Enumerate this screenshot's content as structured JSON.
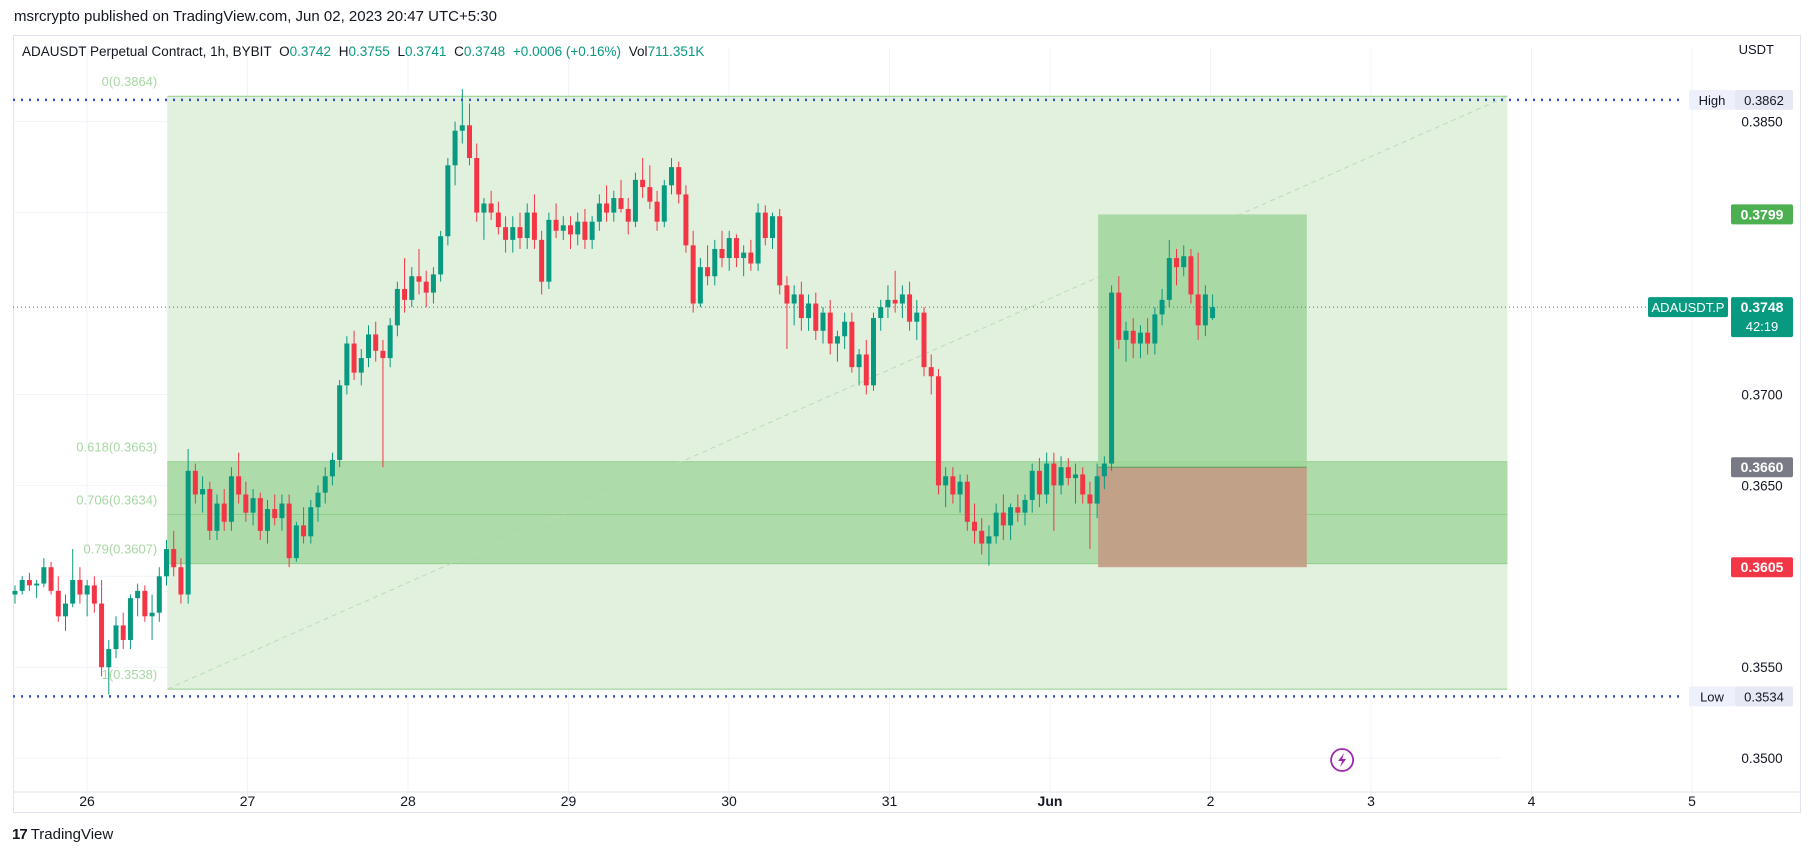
{
  "caption": "msrcrypto published on TradingView.com, Jun 02, 2023 20:47 UTC+5:30",
  "legend": {
    "symbol": "ADAUSDT Perpetual Contract, 1h, BYBIT",
    "o_label": "O",
    "o_value": "0.3742",
    "h_label": "H",
    "h_value": "0.3755",
    "l_label": "L",
    "l_value": "0.3741",
    "c_label": "C",
    "c_value": "0.3748",
    "change": "+0.0006 (+0.16%)",
    "vol_label": "Vol",
    "vol_value": "711.351K"
  },
  "currency": "USDT",
  "footer": {
    "logo": "17",
    "brand": "TradingView"
  },
  "colors": {
    "up": "#089981",
    "down": "#f23645",
    "fib_zone": "#dff0dc",
    "golden_zone": "#a7d8a4",
    "target": "#9fd69b",
    "stop": "#c49a85",
    "hl_line": "#2f4de0"
  },
  "chart_data": {
    "type": "candlestick",
    "title": "ADAUSDT Perpetual Contract, 1h, BYBIT",
    "ylim": [
      0.3488,
      0.3885
    ],
    "y_ticks": [
      0.385,
      0.37,
      0.365,
      0.355,
      0.35
    ],
    "y_tick_labels": [
      "0.3850",
      "0.3700",
      "0.3650",
      "0.3550",
      "0.3500"
    ],
    "x_ticks": [
      {
        "label": "26",
        "day": 26
      },
      {
        "label": "27",
        "day": 27
      },
      {
        "label": "28",
        "day": 28
      },
      {
        "label": "29",
        "day": 29
      },
      {
        "label": "30",
        "day": 30
      },
      {
        "label": "31",
        "day": 31
      },
      {
        "label": "Jun",
        "day": 32
      },
      {
        "label": "2",
        "day": 33
      },
      {
        "label": "3",
        "day": 34
      },
      {
        "label": "4",
        "day": 35
      },
      {
        "label": "5",
        "day": 36
      }
    ],
    "fib_levels": [
      {
        "label": "0(0.3864)",
        "value": 0.3864
      },
      {
        "label": "0.618(0.3663)",
        "value": 0.3663
      },
      {
        "label": "0.706(0.3634)",
        "value": 0.3634
      },
      {
        "label": "0.79(0.3607)",
        "value": 0.3607
      },
      {
        "label": "1(0.3538)",
        "value": 0.3538
      }
    ],
    "fib_range": {
      "start_day": 26.5,
      "end_day": 34.85
    },
    "high": {
      "label": "High",
      "value": 0.3862,
      "display": "0.3862"
    },
    "low": {
      "label": "Low",
      "value": 0.3534,
      "display": "0.3534"
    },
    "position": {
      "start_day": 32.3,
      "end_day": 33.6,
      "entry": 0.366,
      "target": 0.3799,
      "stop": 0.3605,
      "entry_label": "0.3660",
      "target_label": "0.3799",
      "stop_label": "0.3605"
    },
    "last_price": {
      "symbol_label": "ADAUSDT.P",
      "value": 0.3748,
      "display": "0.3748",
      "countdown": "42:19"
    },
    "candles": [
      [
        0.359,
        0.3595,
        0.3585,
        0.3592
      ],
      [
        0.3592,
        0.36,
        0.359,
        0.3598
      ],
      [
        0.3598,
        0.3602,
        0.3592,
        0.3595
      ],
      [
        0.3595,
        0.3598,
        0.3588,
        0.3596
      ],
      [
        0.3596,
        0.361,
        0.3594,
        0.3605
      ],
      [
        0.3605,
        0.3608,
        0.359,
        0.3592
      ],
      [
        0.3592,
        0.36,
        0.3575,
        0.3578
      ],
      [
        0.3578,
        0.359,
        0.357,
        0.3585
      ],
      [
        0.3585,
        0.3615,
        0.3583,
        0.3598
      ],
      [
        0.3598,
        0.3605,
        0.3585,
        0.359
      ],
      [
        0.359,
        0.3598,
        0.3578,
        0.3595
      ],
      [
        0.3595,
        0.36,
        0.358,
        0.3585
      ],
      [
        0.3585,
        0.3598,
        0.3545,
        0.355
      ],
      [
        0.355,
        0.3565,
        0.3535,
        0.356
      ],
      [
        0.356,
        0.3578,
        0.3555,
        0.3573
      ],
      [
        0.3573,
        0.358,
        0.356,
        0.3565
      ],
      [
        0.3565,
        0.359,
        0.356,
        0.3588
      ],
      [
        0.3588,
        0.3596,
        0.3578,
        0.3592
      ],
      [
        0.3592,
        0.3595,
        0.3575,
        0.3578
      ],
      [
        0.3578,
        0.359,
        0.3565,
        0.358
      ],
      [
        0.358,
        0.3605,
        0.3575,
        0.36
      ],
      [
        0.36,
        0.362,
        0.3595,
        0.3615
      ],
      [
        0.3615,
        0.3625,
        0.36,
        0.3605
      ],
      [
        0.3605,
        0.361,
        0.3585,
        0.359
      ],
      [
        0.359,
        0.367,
        0.3585,
        0.3658
      ],
      [
        0.3658,
        0.3662,
        0.364,
        0.3645
      ],
      [
        0.3645,
        0.3655,
        0.3635,
        0.3648
      ],
      [
        0.3648,
        0.3652,
        0.362,
        0.3625
      ],
      [
        0.3625,
        0.3645,
        0.362,
        0.364
      ],
      [
        0.364,
        0.3648,
        0.3625,
        0.363
      ],
      [
        0.363,
        0.366,
        0.3625,
        0.3655
      ],
      [
        0.3655,
        0.3668,
        0.364,
        0.3645
      ],
      [
        0.3645,
        0.3652,
        0.363,
        0.3635
      ],
      [
        0.3635,
        0.3648,
        0.3628,
        0.3643
      ],
      [
        0.3643,
        0.3646,
        0.362,
        0.3625
      ],
      [
        0.3625,
        0.3642,
        0.3618,
        0.3637
      ],
      [
        0.3637,
        0.3645,
        0.3628,
        0.3632
      ],
      [
        0.3632,
        0.3645,
        0.3625,
        0.364
      ],
      [
        0.364,
        0.3645,
        0.3605,
        0.361
      ],
      [
        0.361,
        0.363,
        0.3608,
        0.3628
      ],
      [
        0.3628,
        0.3638,
        0.3618,
        0.3622
      ],
      [
        0.3622,
        0.3642,
        0.3618,
        0.3638
      ],
      [
        0.3638,
        0.365,
        0.363,
        0.3646
      ],
      [
        0.3646,
        0.366,
        0.364,
        0.3655
      ],
      [
        0.3655,
        0.3668,
        0.365,
        0.3664
      ],
      [
        0.3664,
        0.3708,
        0.366,
        0.3705
      ],
      [
        0.3705,
        0.3732,
        0.37,
        0.3728
      ],
      [
        0.3728,
        0.3735,
        0.3708,
        0.3712
      ],
      [
        0.3712,
        0.3725,
        0.3705,
        0.372
      ],
      [
        0.372,
        0.3738,
        0.3715,
        0.3733
      ],
      [
        0.3733,
        0.374,
        0.3718,
        0.3724
      ],
      [
        0.3724,
        0.373,
        0.366,
        0.372
      ],
      [
        0.372,
        0.3742,
        0.3715,
        0.3738
      ],
      [
        0.3738,
        0.3762,
        0.3732,
        0.3758
      ],
      [
        0.3758,
        0.3775,
        0.3745,
        0.3752
      ],
      [
        0.3752,
        0.377,
        0.3748,
        0.3765
      ],
      [
        0.3765,
        0.378,
        0.3755,
        0.3762
      ],
      [
        0.3762,
        0.3768,
        0.3748,
        0.3756
      ],
      [
        0.3756,
        0.377,
        0.375,
        0.3766
      ],
      [
        0.3766,
        0.379,
        0.3762,
        0.3787
      ],
      [
        0.3787,
        0.383,
        0.3782,
        0.3826
      ],
      [
        0.3826,
        0.385,
        0.3815,
        0.3845
      ],
      [
        0.3845,
        0.3868,
        0.3838,
        0.3848
      ],
      [
        0.3848,
        0.386,
        0.3826,
        0.383
      ],
      [
        0.383,
        0.3838,
        0.3795,
        0.38
      ],
      [
        0.38,
        0.3808,
        0.3785,
        0.3805
      ],
      [
        0.3805,
        0.3812,
        0.3796,
        0.38
      ],
      [
        0.38,
        0.3806,
        0.3788,
        0.3792
      ],
      [
        0.3792,
        0.3798,
        0.3778,
        0.3785
      ],
      [
        0.3785,
        0.3798,
        0.3778,
        0.3792
      ],
      [
        0.3792,
        0.38,
        0.378,
        0.3786
      ],
      [
        0.3786,
        0.3805,
        0.378,
        0.38
      ],
      [
        0.38,
        0.381,
        0.378,
        0.3785
      ],
      [
        0.3785,
        0.379,
        0.3755,
        0.3762
      ],
      [
        0.3762,
        0.38,
        0.3758,
        0.3796
      ],
      [
        0.3796,
        0.3805,
        0.3786,
        0.379
      ],
      [
        0.379,
        0.3798,
        0.3785,
        0.3793
      ],
      [
        0.3793,
        0.3798,
        0.378,
        0.3788
      ],
      [
        0.3788,
        0.38,
        0.3782,
        0.3795
      ],
      [
        0.3795,
        0.3802,
        0.378,
        0.3785
      ],
      [
        0.3785,
        0.3798,
        0.378,
        0.3795
      ],
      [
        0.3795,
        0.381,
        0.379,
        0.3805
      ],
      [
        0.3805,
        0.3815,
        0.3795,
        0.38
      ],
      [
        0.38,
        0.3812,
        0.3795,
        0.3808
      ],
      [
        0.3808,
        0.3818,
        0.38,
        0.3802
      ],
      [
        0.3802,
        0.3808,
        0.3788,
        0.3795
      ],
      [
        0.3795,
        0.3822,
        0.3792,
        0.3818
      ],
      [
        0.3818,
        0.383,
        0.3808,
        0.3814
      ],
      [
        0.3814,
        0.3826,
        0.3802,
        0.3806
      ],
      [
        0.3806,
        0.3812,
        0.379,
        0.3795
      ],
      [
        0.3795,
        0.3818,
        0.3792,
        0.3815
      ],
      [
        0.3815,
        0.383,
        0.381,
        0.3825
      ],
      [
        0.3825,
        0.3828,
        0.3805,
        0.381
      ],
      [
        0.381,
        0.3815,
        0.3778,
        0.3782
      ],
      [
        0.3782,
        0.379,
        0.3745,
        0.375
      ],
      [
        0.375,
        0.3775,
        0.3748,
        0.377
      ],
      [
        0.377,
        0.3782,
        0.376,
        0.3765
      ],
      [
        0.3765,
        0.3785,
        0.376,
        0.378
      ],
      [
        0.378,
        0.379,
        0.377,
        0.3775
      ],
      [
        0.3775,
        0.379,
        0.3768,
        0.3786
      ],
      [
        0.3786,
        0.3788,
        0.377,
        0.3775
      ],
      [
        0.3775,
        0.3782,
        0.3765,
        0.3778
      ],
      [
        0.3778,
        0.3785,
        0.3768,
        0.3772
      ],
      [
        0.3772,
        0.3805,
        0.3768,
        0.38
      ],
      [
        0.38,
        0.3804,
        0.3782,
        0.3786
      ],
      [
        0.3786,
        0.38,
        0.378,
        0.3798
      ],
      [
        0.3798,
        0.3802,
        0.3755,
        0.376
      ],
      [
        0.376,
        0.3765,
        0.3725,
        0.375
      ],
      [
        0.375,
        0.376,
        0.3738,
        0.3755
      ],
      [
        0.3755,
        0.3762,
        0.3735,
        0.3742
      ],
      [
        0.3742,
        0.3755,
        0.3735,
        0.375
      ],
      [
        0.375,
        0.3756,
        0.373,
        0.3735
      ],
      [
        0.3735,
        0.3748,
        0.3728,
        0.3745
      ],
      [
        0.3745,
        0.3752,
        0.3722,
        0.3728
      ],
      [
        0.3728,
        0.3735,
        0.3718,
        0.3732
      ],
      [
        0.3732,
        0.3745,
        0.3725,
        0.374
      ],
      [
        0.374,
        0.3745,
        0.3712,
        0.3715
      ],
      [
        0.3715,
        0.3725,
        0.3705,
        0.3722
      ],
      [
        0.3722,
        0.373,
        0.37,
        0.3705
      ],
      [
        0.3705,
        0.3745,
        0.3702,
        0.3742
      ],
      [
        0.3742,
        0.3752,
        0.3735,
        0.3748
      ],
      [
        0.3748,
        0.376,
        0.3742,
        0.3752
      ],
      [
        0.3752,
        0.3768,
        0.3745,
        0.375
      ],
      [
        0.375,
        0.376,
        0.3742,
        0.3755
      ],
      [
        0.3755,
        0.3762,
        0.3735,
        0.374
      ],
      [
        0.374,
        0.3752,
        0.373,
        0.3745
      ],
      [
        0.3745,
        0.3748,
        0.371,
        0.3715
      ],
      [
        0.3715,
        0.3722,
        0.37,
        0.371
      ],
      [
        0.371,
        0.3714,
        0.3645,
        0.365
      ],
      [
        0.365,
        0.366,
        0.3638,
        0.3655
      ],
      [
        0.3655,
        0.366,
        0.364,
        0.3645
      ],
      [
        0.3645,
        0.3656,
        0.3635,
        0.3652
      ],
      [
        0.3652,
        0.3656,
        0.3625,
        0.363
      ],
      [
        0.363,
        0.364,
        0.3618,
        0.3625
      ],
      [
        0.3625,
        0.3632,
        0.3612,
        0.3618
      ],
      [
        0.3618,
        0.3628,
        0.3606,
        0.3622
      ],
      [
        0.3622,
        0.364,
        0.3618,
        0.3635
      ],
      [
        0.3635,
        0.3645,
        0.362,
        0.3628
      ],
      [
        0.3628,
        0.364,
        0.362,
        0.3638
      ],
      [
        0.3638,
        0.3645,
        0.363,
        0.3635
      ],
      [
        0.3635,
        0.3645,
        0.3628,
        0.3642
      ],
      [
        0.3642,
        0.3662,
        0.3635,
        0.3658
      ],
      [
        0.3658,
        0.3665,
        0.3638,
        0.3645
      ],
      [
        0.3645,
        0.3668,
        0.364,
        0.3662
      ],
      [
        0.3662,
        0.3668,
        0.3625,
        0.365
      ],
      [
        0.365,
        0.3666,
        0.3645,
        0.366
      ],
      [
        0.366,
        0.3665,
        0.365,
        0.3654
      ],
      [
        0.3654,
        0.3662,
        0.364,
        0.3656
      ],
      [
        0.3656,
        0.366,
        0.364,
        0.3645
      ],
      [
        0.3645,
        0.3652,
        0.3615,
        0.364
      ],
      [
        0.364,
        0.3662,
        0.3632,
        0.3655
      ],
      [
        0.3655,
        0.3666,
        0.3648,
        0.3662
      ],
      [
        0.3662,
        0.376,
        0.3658,
        0.3756
      ],
      [
        0.3756,
        0.3765,
        0.3725,
        0.373
      ],
      [
        0.373,
        0.374,
        0.3718,
        0.3735
      ],
      [
        0.3735,
        0.3742,
        0.372,
        0.3728
      ],
      [
        0.3728,
        0.3738,
        0.372,
        0.3734
      ],
      [
        0.3734,
        0.3742,
        0.3722,
        0.3728
      ],
      [
        0.3728,
        0.3748,
        0.3722,
        0.3744
      ],
      [
        0.3744,
        0.3758,
        0.3738,
        0.3752
      ],
      [
        0.3752,
        0.3785,
        0.3748,
        0.3775
      ],
      [
        0.3775,
        0.378,
        0.376,
        0.377
      ],
      [
        0.377,
        0.3782,
        0.3765,
        0.3776
      ],
      [
        0.3776,
        0.378,
        0.375,
        0.3755
      ],
      [
        0.3755,
        0.3778,
        0.373,
        0.3738
      ],
      [
        0.3738,
        0.376,
        0.3732,
        0.3755
      ],
      [
        0.3742,
        0.3755,
        0.3741,
        0.3748
      ]
    ],
    "last_candle": {
      "open": 0.3742,
      "high": 0.3755,
      "low": 0.3741,
      "close": 0.3748
    }
  }
}
